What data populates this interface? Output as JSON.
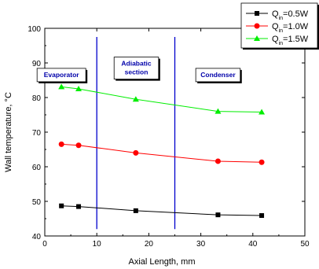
{
  "chart_data": {
    "type": "line",
    "xlabel": "Axial Length, mm",
    "ylabel": "Wall temperature, °C",
    "xlim": [
      0,
      50
    ],
    "ylim": [
      40,
      100
    ],
    "xticks": [
      0,
      10,
      20,
      30,
      40,
      50
    ],
    "yticks": [
      40,
      50,
      60,
      70,
      80,
      90,
      100
    ],
    "grid": false,
    "legend_position": "top-right",
    "series": [
      {
        "name": "Q_in=0.5W",
        "name_main": "Q",
        "name_sub": "in",
        "name_rest": "=0.5W",
        "color": "#000000",
        "marker": "square",
        "x": [
          3.2,
          6.5,
          17.5,
          33.3,
          41.7
        ],
        "y": [
          48.7,
          48.5,
          47.3,
          46.1,
          45.9
        ]
      },
      {
        "name": "Q_in=1.0W",
        "name_main": "Q",
        "name_sub": "in",
        "name_rest": "=1.0W",
        "color": "#ff0000",
        "marker": "circle",
        "x": [
          3.2,
          6.5,
          17.5,
          33.3,
          41.7
        ],
        "y": [
          66.5,
          66.2,
          64.0,
          61.6,
          61.3
        ]
      },
      {
        "name": "Q_in=1.5W",
        "name_main": "Q",
        "name_sub": "in",
        "name_rest": "=1.5W",
        "color": "#00ee00",
        "marker": "triangle",
        "x": [
          3.2,
          6.5,
          17.5,
          33.3,
          41.7
        ],
        "y": [
          83.1,
          82.5,
          79.5,
          76.0,
          75.8
        ]
      }
    ],
    "dividers": {
      "x": [
        10,
        25
      ],
      "color": "#0000cc"
    },
    "annotations": [
      {
        "lines": [
          "Evaporator"
        ],
        "x": 3.2,
        "y": 86.5
      },
      {
        "lines": [
          "Adiabatic",
          "section"
        ],
        "x": 17.6,
        "y": 88.5
      },
      {
        "lines": [
          "Condenser"
        ],
        "x": 33.3,
        "y": 86.5
      }
    ]
  }
}
